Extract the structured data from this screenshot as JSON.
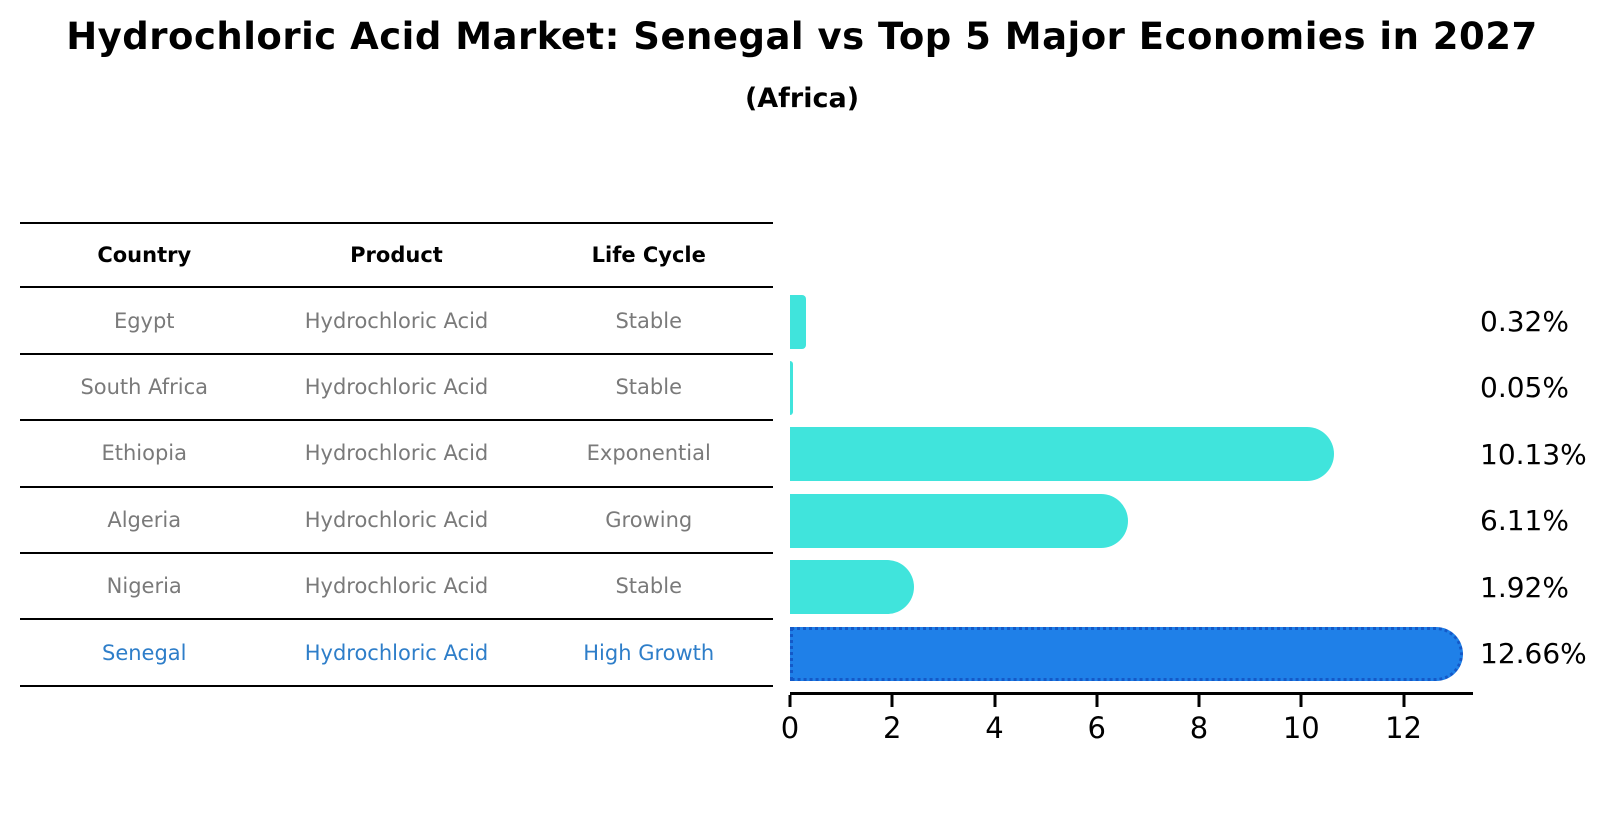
{
  "title": "Hydrochloric Acid Market: Senegal vs Top 5 Major Economies in 2027",
  "subtitle": "(Africa)",
  "table": {
    "headers": [
      "Country",
      "Product",
      "Life Cycle"
    ],
    "rows": [
      {
        "country": "Egypt",
        "product": "Hydrochloric Acid",
        "life_cycle": "Stable"
      },
      {
        "country": "South Africa",
        "product": "Hydrochloric Acid",
        "life_cycle": "Stable"
      },
      {
        "country": "Ethiopia",
        "product": "Hydrochloric Acid",
        "life_cycle": "Exponential"
      },
      {
        "country": "Algeria",
        "product": "Hydrochloric Acid",
        "life_cycle": "Growing"
      },
      {
        "country": "Nigeria",
        "product": "Hydrochloric Acid",
        "life_cycle": "Stable"
      },
      {
        "country": "Senegal",
        "product": "Hydrochloric Acid",
        "life_cycle": "High Growth"
      }
    ]
  },
  "chart_data": {
    "type": "bar",
    "orientation": "horizontal",
    "categories": [
      "Egypt",
      "South Africa",
      "Ethiopia",
      "Algeria",
      "Nigeria",
      "Senegal"
    ],
    "values": [
      0.32,
      0.05,
      10.13,
      6.11,
      1.92,
      12.66
    ],
    "value_labels": [
      "0.32%",
      "0.05%",
      "10.13%",
      "6.11%",
      "1.92%",
      "12.66%"
    ],
    "highlight_index": 5,
    "xticks": [
      0,
      2,
      4,
      6,
      8,
      10,
      12
    ],
    "xlim": [
      0,
      13.3
    ],
    "grid": false,
    "legend": false
  },
  "colors": {
    "bar": "#40E4DC",
    "highlight_bar": "#1F80E8",
    "highlight_border": "#1459C8",
    "highlight_text": "#2E7EC9",
    "table_text": "#7A7A7A",
    "axis": "#000000"
  }
}
